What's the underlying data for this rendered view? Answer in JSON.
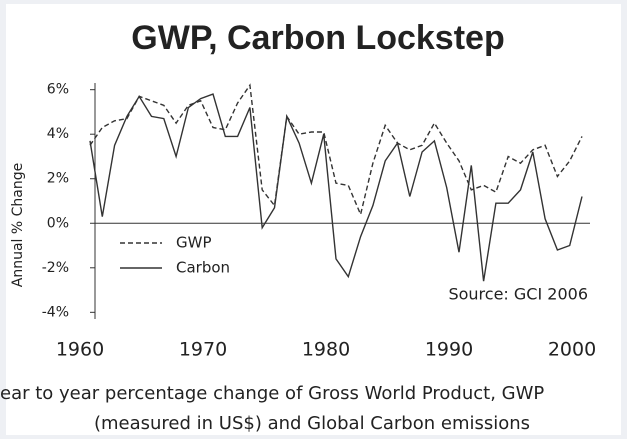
{
  "chart_data": {
    "type": "line",
    "title": "GWP, Carbon Lockstep",
    "y_label": "Annual % Change",
    "annotation": "Source:  GCI 2006",
    "caption": [
      "ear to year percentage change of Gross World Product, GWP",
      "(measured in US$) and Global Carbon emissions"
    ],
    "x": [
      1960,
      1961,
      1962,
      1963,
      1964,
      1965,
      1966,
      1967,
      1968,
      1969,
      1970,
      1971,
      1972,
      1973,
      1974,
      1975,
      1976,
      1977,
      1978,
      1979,
      1980,
      1981,
      1982,
      1983,
      1984,
      1985,
      1986,
      1987,
      1988,
      1989,
      1990,
      1991,
      1992,
      1993,
      1994,
      1995,
      1996,
      1997,
      1998,
      1999,
      2000
    ],
    "series": [
      {
        "name": "GWP",
        "color": "#333333",
        "dash": "dashed",
        "values": [
          3.5,
          4.3,
          4.6,
          4.7,
          5.7,
          5.5,
          5.3,
          4.5,
          5.3,
          5.5,
          4.3,
          4.2,
          5.4,
          6.2,
          1.5,
          0.8,
          4.8,
          4.0,
          4.1,
          4.1,
          1.8,
          1.7,
          0.4,
          2.7,
          4.4,
          3.6,
          3.3,
          3.5,
          4.5,
          3.6,
          2.8,
          1.5,
          1.7,
          1.4,
          3.0,
          2.7,
          3.3,
          3.5,
          2.1,
          2.8,
          3.9
        ]
      },
      {
        "name": "Carbon",
        "color": "#333333",
        "dash": "solid",
        "values": [
          3.7,
          0.3,
          3.5,
          4.8,
          5.7,
          4.8,
          4.7,
          3.0,
          5.2,
          5.6,
          5.8,
          3.9,
          3.9,
          5.2,
          -0.2,
          0.7,
          4.8,
          3.6,
          1.8,
          4.0,
          -1.6,
          -2.4,
          -0.6,
          0.8,
          2.8,
          3.6,
          1.2,
          3.2,
          3.7,
          1.6,
          -1.3,
          2.6,
          -2.6,
          0.9,
          0.9,
          1.5,
          3.2,
          0.2,
          -1.2,
          -1.0,
          1.2
        ]
      }
    ],
    "xlim": [
      1960,
      2000
    ],
    "xticks": [
      1960,
      1970,
      1980,
      1990,
      2000
    ],
    "ylim": [
      -4.3,
      6.3
    ],
    "yticks": [
      {
        "value": 6,
        "label": "6%"
      },
      {
        "value": 4,
        "label": "4%"
      },
      {
        "value": 2,
        "label": "2%"
      },
      {
        "value": 0,
        "label": "0%"
      },
      {
        "value": -2,
        "label": "-2%"
      },
      {
        "value": -4,
        "label": "-4%"
      }
    ],
    "zero_line": true
  }
}
